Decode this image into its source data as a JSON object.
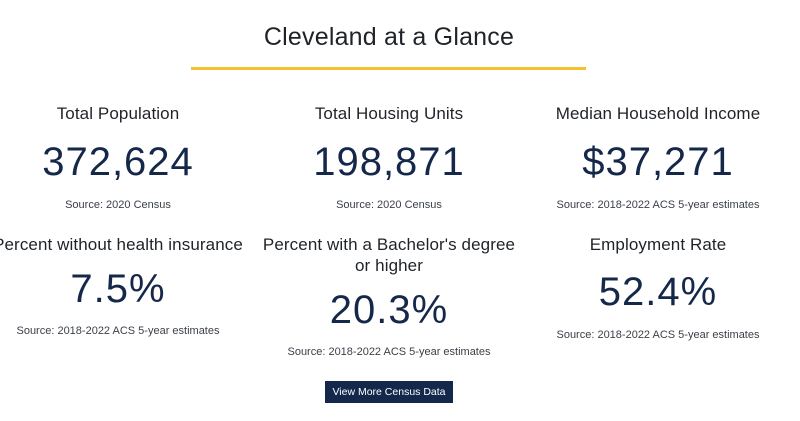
{
  "header": {
    "title": "Cleveland at a Glance",
    "accent_color": "#f2c230"
  },
  "stats": [
    {
      "label": "Total Population",
      "value": "372,624",
      "source": "Source: 2020 Census"
    },
    {
      "label": "Total Housing Units",
      "value": "198,871",
      "source": "Source: 2020 Census"
    },
    {
      "label": "Median Household Income",
      "value": "$37,271",
      "source": "Source: 2018-2022 ACS 5-year estimates"
    },
    {
      "label": "Percent without health insurance",
      "value": "7.5%",
      "source": "Source: 2018-2022 ACS 5-year estimates"
    },
    {
      "label": "Percent with a Bachelor's degree or higher",
      "value": "20.3%",
      "source": "Source: 2018-2022 ACS 5-year estimates"
    },
    {
      "label": "Employment Rate",
      "value": "52.4%",
      "source": "Source: 2018-2022 ACS 5-year estimates"
    }
  ],
  "cta": {
    "label": "View More Census Data",
    "color": "#14284b"
  },
  "value_color": "#16284a"
}
